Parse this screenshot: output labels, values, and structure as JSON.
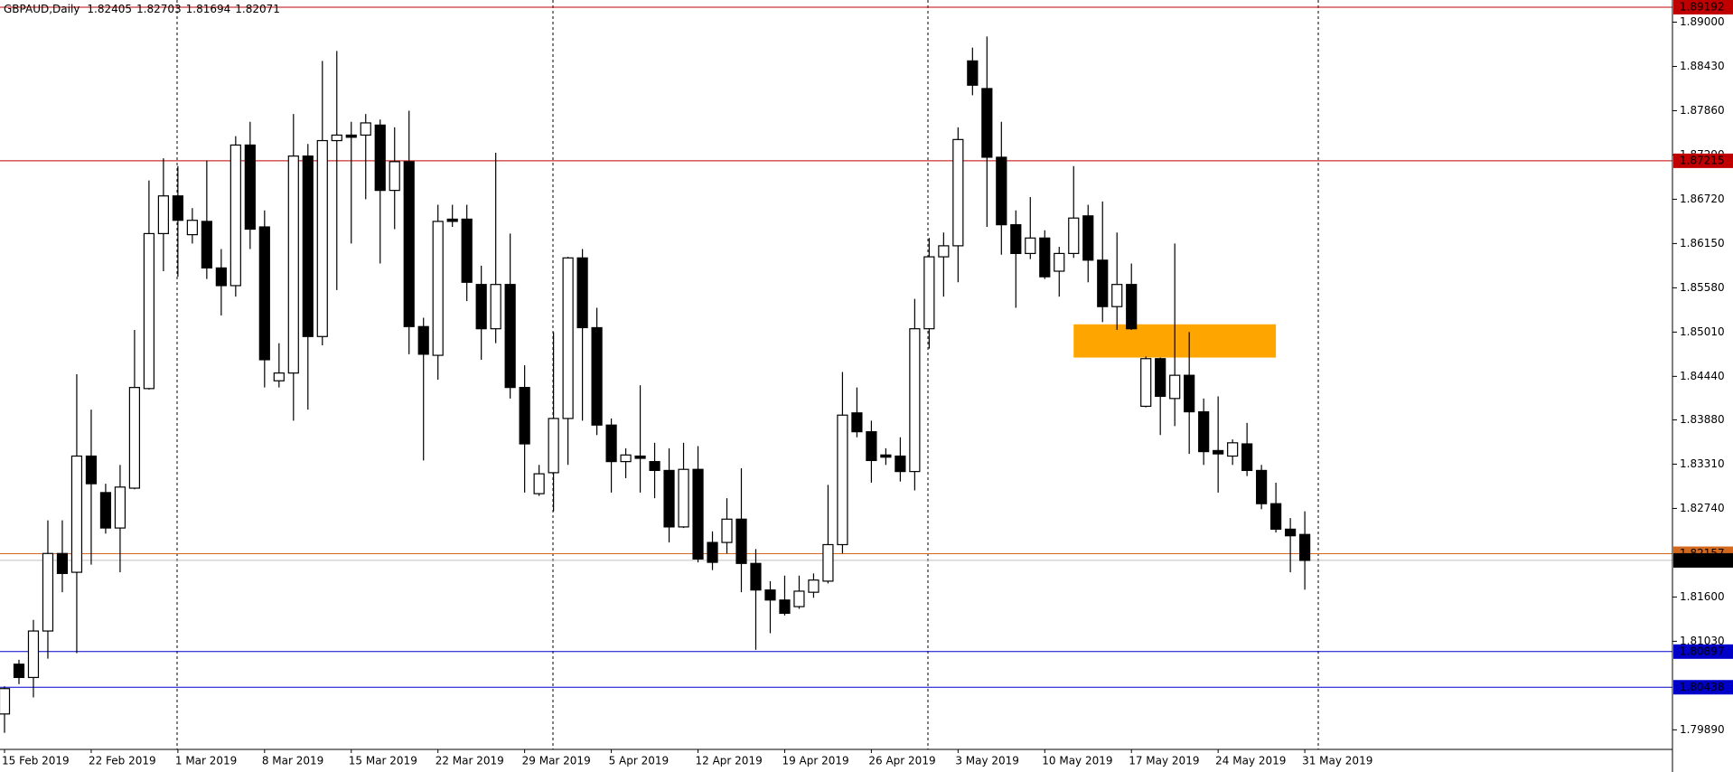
{
  "chart_data": {
    "type": "candlestick",
    "symbol": "GBPAUD,Daily",
    "categories": [
      "15 Feb 2019",
      null,
      null,
      null,
      null,
      null,
      "22 Feb 2019",
      null,
      null,
      null,
      null,
      null,
      "1 Mar 2019",
      null,
      null,
      null,
      null,
      null,
      "8 Mar 2019",
      null,
      null,
      null,
      null,
      null,
      "15 Mar 2019",
      null,
      null,
      null,
      null,
      null,
      "22 Mar 2019",
      null,
      null,
      null,
      null,
      null,
      "29 Mar 2019",
      null,
      null,
      null,
      null,
      null,
      "5 Apr 2019",
      null,
      null,
      null,
      null,
      null,
      "12 Apr 2019",
      null,
      null,
      null,
      null,
      null,
      "19 Apr 2019",
      null,
      null,
      null,
      null,
      null,
      "26 Apr 2019",
      null,
      null,
      null,
      null,
      null,
      "3 May 2019",
      null,
      null,
      null,
      null,
      null,
      "10 May 2019",
      null,
      null,
      null,
      null,
      null,
      "17 May 2019",
      null,
      null,
      null,
      null,
      null,
      "24 May 2019",
      null,
      null,
      null,
      null,
      null,
      "31 May 2019"
    ],
    "open": [
      1.80094,
      1.80735,
      1.80564,
      1.81162,
      1.8216,
      1.81918,
      1.83414,
      1.82944,
      1.82488,
      1.83001,
      1.84283,
      1.86278,
      1.86763,
      1.86264,
      1.86435,
      1.85836,
      1.85608,
      1.87418,
      1.86364,
      1.84383,
      1.84483,
      1.87276,
      1.84953,
      1.87475,
      1.87546,
      1.87546,
      1.87675,
      1.86834,
      1.87204,
      1.85081,
      1.84711,
      1.86464,
      1.86464,
      1.85623,
      1.85053,
      1.85623,
      1.84297,
      1.8293,
      1.832,
      1.83898,
      1.85965,
      1.85067,
      1.83813,
      1.83343,
      1.83414,
      1.83343,
      1.83229,
      1.82502,
      1.83243,
      1.82302,
      1.82302,
      1.82602,
      1.82032,
      1.8169,
      1.81561,
      1.81476,
      1.81661,
      1.81804,
      1.82274,
      1.8397,
      1.83727,
      1.83428,
      1.83414,
      1.83215,
      1.85053,
      1.85979,
      1.86121,
      1.88501,
      1.88145,
      1.87261,
      1.86392,
      1.86022,
      1.86221,
      1.85794,
      1.86022,
      1.86506,
      1.85936,
      1.85338,
      1.85623,
      1.84055,
      1.84668,
      1.84155,
      1.84454,
      1.83984,
      1.83485,
      1.83414,
      1.83571,
      1.83229,
      1.82801,
      1.82473,
      1.82405
    ],
    "high": [
      1.8045,
      1.80792,
      1.81305,
      1.82587,
      1.82587,
      1.84468,
      1.84012,
      1.83058,
      1.833,
      1.85038,
      1.86962,
      1.87247,
      1.87147,
      1.86606,
      1.87219,
      1.86079,
      1.87532,
      1.87717,
      1.86577,
      1.84867,
      1.87817,
      1.87432,
      1.88501,
      1.88629,
      1.87717,
      1.87817,
      1.87746,
      1.87646,
      1.8786,
      1.85195,
      1.86649,
      1.86649,
      1.86649,
      1.85865,
      1.87318,
      1.86278,
      1.84582,
      1.833,
      1.8501,
      1.85979,
      1.86079,
      1.85323,
      1.83898,
      1.83514,
      1.84326,
      1.83585,
      1.83514,
      1.83585,
      1.83542,
      1.82445,
      1.82872,
      1.83257,
      1.82217,
      1.81804,
      1.81875,
      1.81875,
      1.81903,
      1.83043,
      1.84497,
      1.84297,
      1.8387,
      1.83514,
      1.83656,
      1.85437,
      1.86221,
      1.86292,
      1.87646,
      1.88672,
      1.88815,
      1.87717,
      1.86577,
      1.86748,
      1.86321,
      1.86107,
      1.87147,
      1.86649,
      1.86691,
      1.86292,
      1.85893,
      1.84696,
      1.84682,
      1.8615,
      1.8501,
      1.84155,
      1.84183,
      1.83628,
      1.83841,
      1.833,
      1.83072,
      1.82616,
      1.82703
    ],
    "low": [
      1.79851,
      1.80478,
      1.80307,
      1.80806,
      1.81661,
      1.80877,
      1.82017,
      1.82416,
      1.81918,
      1.82987,
      1.84269,
      1.85794,
      1.85722,
      1.8615,
      1.85694,
      1.85224,
      1.85466,
      1.86079,
      1.84297,
      1.84297,
      1.8387,
      1.84012,
      1.84839,
      1.85551,
      1.8615,
      1.8672,
      1.85893,
      1.86335,
      1.84725,
      1.83357,
      1.84397,
      1.86364,
      1.85409,
      1.84654,
      1.84867,
      1.84155,
      1.82944,
      1.82901,
      1.82701,
      1.833,
      1.8387,
      1.83685,
      1.82944,
      1.83129,
      1.82944,
      1.82872,
      1.82302,
      1.82488,
      1.82046,
      1.81946,
      1.8216,
      1.81661,
      1.8092,
      1.81134,
      1.81362,
      1.81447,
      1.8159,
      1.81775,
      1.8216,
      1.83656,
      1.83072,
      1.833,
      1.83086,
      1.82972,
      1.84796,
      1.85466,
      1.85651,
      1.88059,
      1.86364,
      1.86007,
      1.85323,
      1.8595,
      1.85694,
      1.85466,
      1.85965,
      1.85651,
      1.85138,
      1.85038,
      1.85038,
      1.84041,
      1.83685,
      1.83799,
      1.83442,
      1.833,
      1.82944,
      1.833,
      1.83157,
      1.8273,
      1.82431,
      1.81918,
      1.81694
    ],
    "close": [
      1.80421,
      1.80564,
      1.81162,
      1.8216,
      1.81903,
      1.83414,
      1.83058,
      1.82488,
      1.83015,
      1.84297,
      1.86278,
      1.86763,
      1.86449,
      1.86449,
      1.85836,
      1.85608,
      1.87418,
      1.86335,
      1.84654,
      1.84483,
      1.87276,
      1.84953,
      1.87475,
      1.87546,
      1.87518,
      1.87703,
      1.86834,
      1.87204,
      1.85081,
      1.84725,
      1.86435,
      1.86435,
      1.85651,
      1.85053,
      1.85623,
      1.84297,
      1.83571,
      1.83186,
      1.83898,
      1.85965,
      1.85067,
      1.83813,
      1.83343,
      1.83428,
      1.83385,
      1.83229,
      1.82502,
      1.83243,
      1.82089,
      1.82046,
      1.82602,
      1.82032,
      1.8169,
      1.81561,
      1.8139,
      1.81675,
      1.81818,
      1.82274,
      1.83941,
      1.83727,
      1.83357,
      1.834,
      1.83215,
      1.85053,
      1.85979,
      1.86121,
      1.87489,
      1.88188,
      1.87261,
      1.86392,
      1.86022,
      1.86221,
      1.85722,
      1.86022,
      1.86478,
      1.85936,
      1.85338,
      1.85623,
      1.85053,
      1.84668,
      1.84183,
      1.84454,
      1.83984,
      1.83471,
      1.83442,
      1.83585,
      1.83229,
      1.82801,
      1.82473,
      1.82388,
      1.82071
    ],
    "up_color": "#ffffff",
    "down_color": "#000000",
    "ylim": [
      1.79638,
      1.89285
    ],
    "yticks": [
      {
        "value": 1.89,
        "label": "1.89000"
      },
      {
        "value": 1.8843,
        "label": "1.88430"
      },
      {
        "value": 1.8786,
        "label": "1.87860"
      },
      {
        "value": 1.8729,
        "label": "1.87290"
      },
      {
        "value": 1.8672,
        "label": "1.86720"
      },
      {
        "value": 1.8615,
        "label": "1.86150"
      },
      {
        "value": 1.8558,
        "label": "1.85580"
      },
      {
        "value": 1.8501,
        "label": "1.85010"
      },
      {
        "value": 1.8444,
        "label": "1.84440"
      },
      {
        "value": 1.8388,
        "label": "1.83880"
      },
      {
        "value": 1.8331,
        "label": "1.83310"
      },
      {
        "value": 1.8274,
        "label": "1.82740"
      },
      {
        "value": 1.816,
        "label": "1.81600"
      },
      {
        "value": 1.8103,
        "label": "1.81030"
      },
      {
        "value": 1.7989,
        "label": "1.79890"
      }
    ],
    "hlines": [
      {
        "value": 1.89192,
        "color": "#c00000"
      },
      {
        "value": 1.87215,
        "color": "#c00000"
      },
      {
        "value": 1.82157,
        "color": "#d2691e"
      },
      {
        "value": 1.80897,
        "color": "#0000c8"
      },
      {
        "value": 1.80438,
        "color": "#0000c8"
      }
    ],
    "zone": {
      "x": [
        74,
        88
      ],
      "y": [
        1.84682,
        1.8511
      ],
      "color": "#ffa500"
    }
  }
}
